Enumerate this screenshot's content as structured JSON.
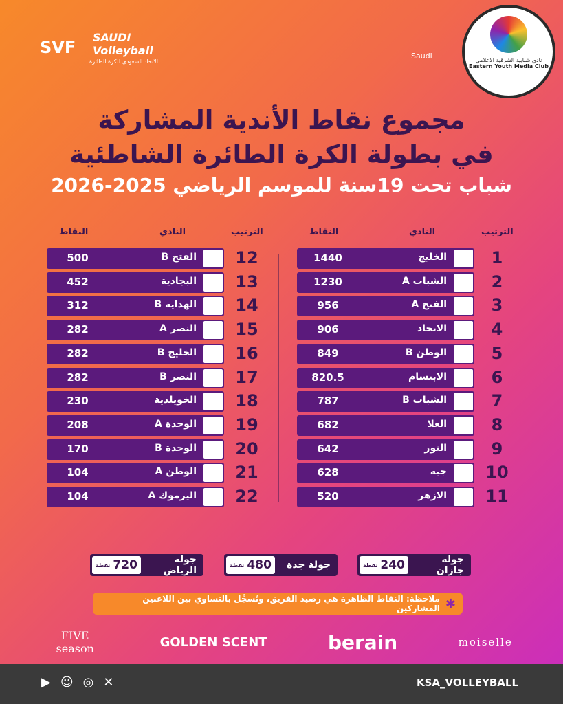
{
  "header": {
    "svf": "SVF",
    "saudi_volleyball": "SAUDI Volleyball",
    "federation_ar": "الاتحاد السعودي للكرة الطائرة",
    "saudi": "Saudi",
    "club_ar": "نادي شبابية الشرقية الاعلامي",
    "club_en": "Eastern Youth Media Club"
  },
  "title": {
    "line1": "مجموع نقاط الأندية المشاركة",
    "line2": "في بطولة الكرة الطائرة الشاطئية",
    "line3": "شباب تحت 19سنة للموسم الرياضي 2025-2026"
  },
  "tables": [
    {
      "headers": [
        "الترتيب",
        "النادي",
        "النقاط"
      ],
      "rows": [
        [
          1,
          "الخليج",
          1440
        ],
        [
          2,
          "الشباب A",
          1230
        ],
        [
          3,
          "الفتح A",
          956
        ],
        [
          4,
          "الاتحاد",
          906
        ],
        [
          5,
          "الوطن B",
          849
        ],
        [
          6,
          "الابتسام",
          820.5
        ],
        [
          7,
          "الشباب B",
          787
        ],
        [
          8,
          "العلا",
          682
        ],
        [
          9,
          "النور",
          642
        ],
        [
          10,
          "جبة",
          628
        ],
        [
          11,
          "الازهر",
          520
        ]
      ]
    },
    {
      "headers": [
        "الترتيب",
        "النادي",
        "النقاط"
      ],
      "rows": [
        [
          12,
          "الفتح B",
          500
        ],
        [
          13,
          "البجادية",
          452
        ],
        [
          14,
          "الهداية B",
          312
        ],
        [
          15,
          "النصر A",
          282
        ],
        [
          16,
          "الخليج B",
          282
        ],
        [
          17,
          "النصر B",
          282
        ],
        [
          18,
          "الخويلدية",
          230
        ],
        [
          19,
          "الوحدة A",
          208
        ],
        [
          20,
          "الوحدة B",
          170
        ],
        [
          21,
          "الوطن A",
          104
        ],
        [
          22,
          "اليرموك A",
          104
        ]
      ]
    }
  ],
  "rounds": [
    {
      "name": "جولة جازان",
      "points": 240,
      "unit": "نقطة"
    },
    {
      "name": "جولة جدة",
      "points": 480,
      "unit": "نقطة"
    },
    {
      "name": "جولة الرياض",
      "points": 720,
      "unit": "نقطة"
    }
  ],
  "note": "ملاحظة: النقاط الظاهرة هي رصيد الفريق، وتُسجَّل بالتساوي بين اللاعبين المشاركين",
  "sponsors": [
    "FIVE season",
    "GOLDEN SCENT",
    "berain",
    "moiselle"
  ],
  "footer": {
    "handle": "KSA_VOLLEYBALL"
  }
}
